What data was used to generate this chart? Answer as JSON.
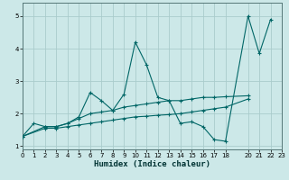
{
  "xlabel": "Humidex (Indice chaleur)",
  "bg_color": "#cce8e8",
  "grid_color": "#aacccc",
  "line_color": "#006666",
  "line1_x": [
    0,
    1,
    2,
    3,
    4,
    5,
    6,
    7,
    8,
    9,
    10,
    11,
    12,
    13,
    14,
    15,
    16,
    17,
    18,
    20,
    21,
    22
  ],
  "line1_y": [
    1.3,
    1.7,
    1.6,
    1.6,
    1.7,
    1.9,
    2.65,
    2.4,
    2.1,
    2.6,
    4.2,
    3.5,
    2.5,
    2.4,
    1.7,
    1.75,
    1.6,
    1.2,
    1.15,
    5.0,
    3.85,
    4.9
  ],
  "line2_x": [
    0,
    2,
    3,
    4,
    5,
    6,
    7,
    8,
    9,
    10,
    11,
    12,
    13,
    14,
    15,
    16,
    17,
    18,
    20
  ],
  "line2_y": [
    1.3,
    1.6,
    1.6,
    1.7,
    1.85,
    2.0,
    2.05,
    2.1,
    2.2,
    2.25,
    2.3,
    2.35,
    2.4,
    2.4,
    2.45,
    2.5,
    2.5,
    2.52,
    2.55
  ],
  "line3_x": [
    0,
    2,
    3,
    4,
    5,
    6,
    7,
    8,
    9,
    10,
    11,
    12,
    13,
    14,
    15,
    16,
    17,
    18,
    20
  ],
  "line3_y": [
    1.3,
    1.55,
    1.55,
    1.6,
    1.65,
    1.7,
    1.75,
    1.8,
    1.85,
    1.9,
    1.92,
    1.95,
    1.97,
    2.0,
    2.05,
    2.1,
    2.15,
    2.2,
    2.45
  ],
  "xlim": [
    0,
    23
  ],
  "ylim": [
    0.9,
    5.4
  ],
  "xticks": [
    0,
    1,
    2,
    3,
    4,
    5,
    6,
    7,
    8,
    9,
    10,
    11,
    12,
    13,
    14,
    15,
    16,
    17,
    18,
    20,
    21,
    22,
    23
  ],
  "yticks": [
    1,
    2,
    3,
    4,
    5
  ]
}
